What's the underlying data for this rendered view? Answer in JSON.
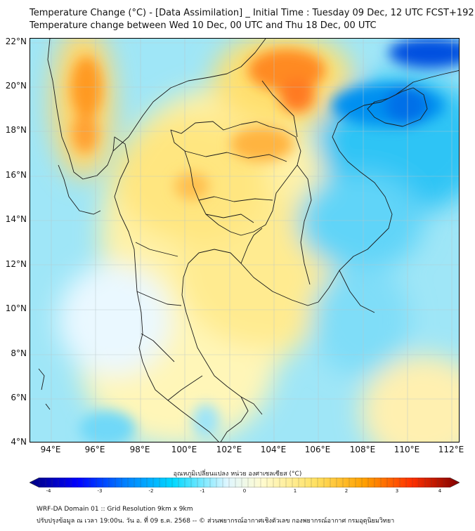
{
  "title_line1": "Temperature Change (°C) - [Data Assimilation] _ Initial Time : Tuesday 09 Dec, 12 UTC FCST+192",
  "title_line2": "Temperature change between Wed 10 Dec, 00 UTC and Thu 18 Dec, 00 UTC",
  "lat_labels": [
    "22°N",
    "20°N",
    "18°N",
    "16°N",
    "14°N",
    "12°N",
    "10°N",
    "8°N",
    "6°N",
    "4°N"
  ],
  "lon_labels": [
    "94°E",
    "96°E",
    "98°E",
    "100°E",
    "102°E",
    "104°E",
    "106°E",
    "108°E",
    "110°E",
    "112°E"
  ],
  "colorbar": {
    "label": "อุณหภูมิเปลี่ยนแปลง หน่วย องศาเซลเซียส (°C)",
    "ticks": [
      "-4",
      "-3",
      "-2",
      "-1",
      "0",
      "1",
      "2",
      "3",
      "4"
    ],
    "range": [
      -4,
      4
    ],
    "colors": [
      "#00007f",
      "#0000ff",
      "#0080ff",
      "#00d8ff",
      "#dff6ff",
      "#fffbd0",
      "#ffe060",
      "#ffa000",
      "#ff3000",
      "#7f0000"
    ]
  },
  "footer_line1": "WRF-DA Domain 01 :: Grid Resolution 9km x 9km",
  "footer_line2": "ปรับปรุงข้อมูล ณ เวลา 19:00น. วัน อ. ที่ 09 ธ.ค. 2568 -- © ส่วนพยากรณ์อากาศเชิงตัวเลข กองพยากรณ์อากาศ กรมอุตุนิยมวิทยา"
}
